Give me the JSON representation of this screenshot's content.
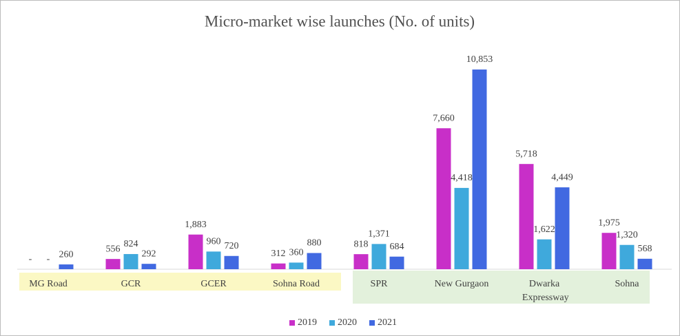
{
  "chart_data": {
    "type": "bar",
    "title": "Micro-market wise launches (No. of units)",
    "categories": [
      "MG Road",
      "GCR",
      "GCER",
      "Sohna Road",
      "SPR",
      "New Gurgaon",
      "Dwarka Expressway",
      "Sohna"
    ],
    "series": [
      {
        "name": "2019",
        "color": "#c82fc8",
        "values": [
          null,
          556,
          1883,
          312,
          818,
          7660,
          5718,
          1975
        ],
        "value_labels": [
          "-",
          "556",
          "1,883",
          "312",
          "818",
          "7,660",
          "5,718",
          "1,975"
        ]
      },
      {
        "name": "2020",
        "color": "#3fa9dc",
        "values": [
          null,
          824,
          960,
          360,
          1371,
          4418,
          1622,
          1320
        ],
        "value_labels": [
          "-",
          "824",
          "960",
          "360",
          "1,371",
          "4,418",
          "1,622",
          "1,320"
        ]
      },
      {
        "name": "2021",
        "color": "#4169e1",
        "values": [
          260,
          292,
          720,
          880,
          684,
          10853,
          4449,
          568
        ],
        "value_labels": [
          "260",
          "292",
          "720",
          "880",
          "684",
          "10,853",
          "4,449",
          "568"
        ]
      }
    ],
    "ylim": [
      0,
      11000
    ],
    "legend": "bottom"
  }
}
